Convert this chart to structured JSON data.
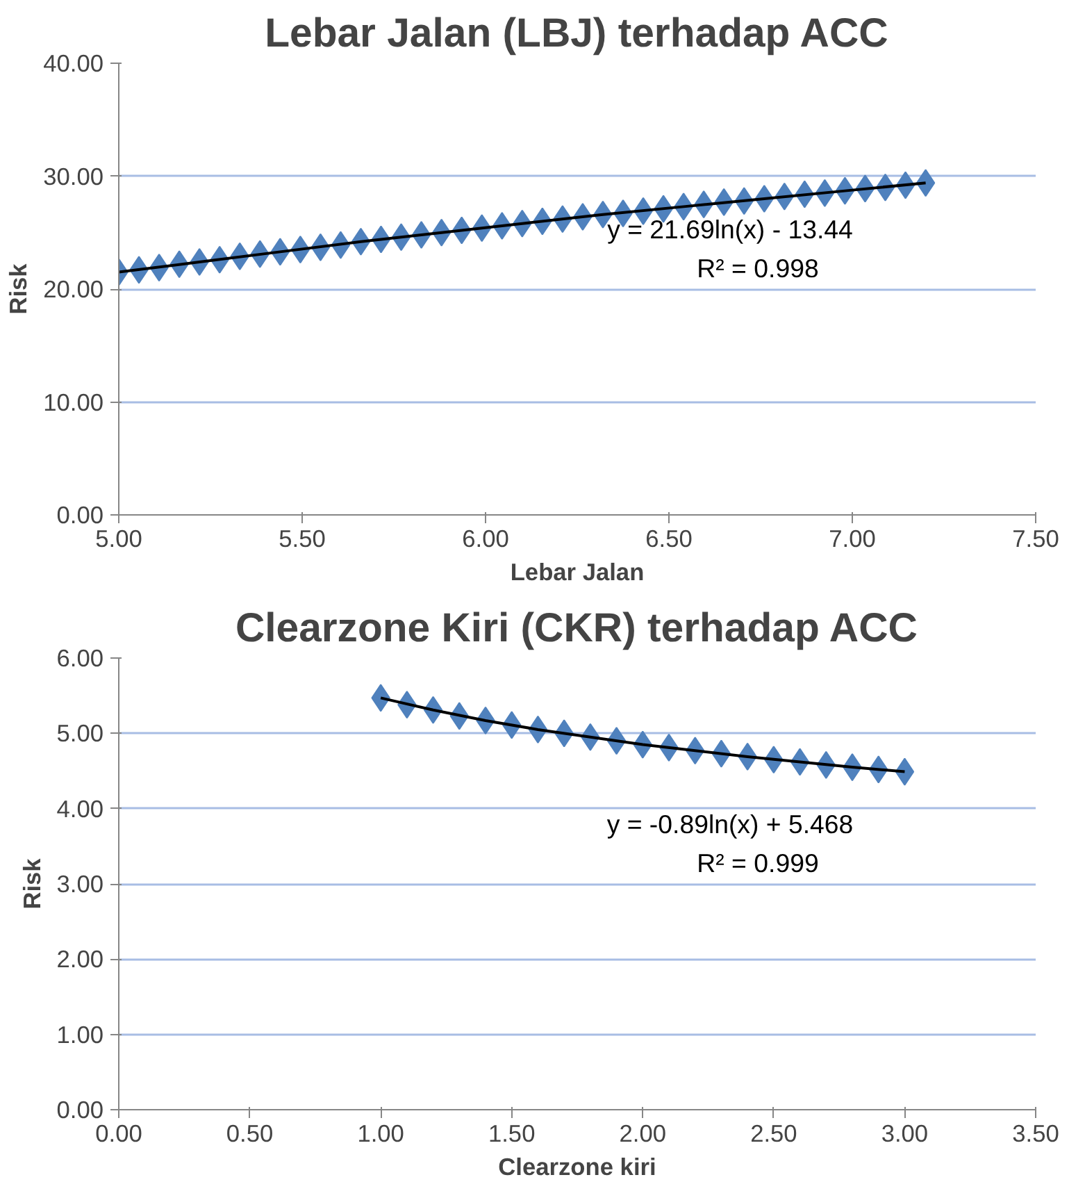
{
  "chart_data": [
    {
      "type": "scatter",
      "title": "Lebar Jalan (LBJ) terhadap ACC",
      "xlabel": "Lebar Jalan",
      "ylabel": "Risk",
      "grid": "y",
      "xlim": [
        5.0,
        7.5
      ],
      "xticks": [
        {
          "value": 5.0,
          "label": "5.00"
        },
        {
          "value": 5.5,
          "label": "5.50"
        },
        {
          "value": 6.0,
          "label": "6.00"
        },
        {
          "value": 6.5,
          "label": "6.50"
        },
        {
          "value": 7.0,
          "label": "7.00"
        },
        {
          "value": 7.5,
          "label": "7.50"
        }
      ],
      "ylim": [
        0,
        40
      ],
      "yticks": [
        {
          "value": 0,
          "label": "0.00"
        },
        {
          "value": 10,
          "label": "10.00"
        },
        {
          "value": 20,
          "label": "20.00"
        },
        {
          "value": 30,
          "label": "30.00"
        },
        {
          "value": 40,
          "label": "40.00"
        }
      ],
      "series": [
        {
          "color": "#4f81bd",
          "marker": "diamond",
          "x": [
            5.0,
            5.055,
            5.11,
            5.165,
            5.22,
            5.275,
            5.33,
            5.385,
            5.44,
            5.495,
            5.55,
            5.605,
            5.66,
            5.715,
            5.77,
            5.825,
            5.88,
            5.935,
            5.99,
            6.045,
            6.1,
            6.155,
            6.21,
            6.265,
            6.32,
            6.375,
            6.43,
            6.485,
            6.54,
            6.595,
            6.65,
            6.705,
            6.76,
            6.815,
            6.87,
            6.925,
            6.98,
            7.035,
            7.09,
            7.145,
            7.2
          ],
          "values": [
            21.5,
            21.7,
            21.9,
            22.2,
            22.4,
            22.6,
            22.9,
            23.1,
            23.3,
            23.5,
            23.7,
            23.9,
            24.2,
            24.4,
            24.6,
            24.8,
            25.0,
            25.2,
            25.4,
            25.6,
            25.8,
            26.0,
            26.2,
            26.4,
            26.6,
            26.7,
            26.9,
            27.1,
            27.3,
            27.5,
            27.7,
            27.8,
            28.0,
            28.2,
            28.4,
            28.5,
            28.7,
            28.9,
            29.0,
            29.2,
            29.4
          ]
        },
        {
          "type": "line",
          "marker": "none",
          "color": "#000000",
          "x": [
            5.0,
            5.22,
            5.44,
            5.66,
            5.88,
            6.1,
            6.32,
            6.54,
            6.76,
            6.98,
            7.2
          ],
          "values": [
            21.5,
            22.4,
            23.3,
            24.2,
            25.0,
            25.8,
            26.6,
            27.3,
            28.0,
            28.7,
            29.4
          ]
        }
      ],
      "annotations": [
        "y = 21.69ln(x) - 13.44",
        "R² = 0.998"
      ]
    },
    {
      "type": "scatter",
      "title": "Clearzone Kiri (CKR) terhadap ACC",
      "xlabel": "Clearzone kiri",
      "ylabel": "Risk",
      "grid": "y",
      "xlim": [
        0.0,
        3.5
      ],
      "xticks": [
        {
          "value": 0.0,
          "label": "0.00"
        },
        {
          "value": 0.5,
          "label": "0.50"
        },
        {
          "value": 1.0,
          "label": "1.00"
        },
        {
          "value": 1.5,
          "label": "1.50"
        },
        {
          "value": 2.0,
          "label": "2.00"
        },
        {
          "value": 2.5,
          "label": "2.50"
        },
        {
          "value": 3.0,
          "label": "3.00"
        },
        {
          "value": 3.5,
          "label": "3.50"
        }
      ],
      "ylim": [
        0,
        6
      ],
      "yticks": [
        {
          "value": 0,
          "label": "0.00"
        },
        {
          "value": 1,
          "label": "1.00"
        },
        {
          "value": 2,
          "label": "2.00"
        },
        {
          "value": 3,
          "label": "3.00"
        },
        {
          "value": 4,
          "label": "4.00"
        },
        {
          "value": 5,
          "label": "5.00"
        },
        {
          "value": 6,
          "label": "6.00"
        }
      ],
      "series": [
        {
          "color": "#4f81bd",
          "marker": "diamond",
          "x": [
            1.0,
            1.1,
            1.2,
            1.3,
            1.4,
            1.5,
            1.6,
            1.7,
            1.8,
            1.9,
            2.0,
            2.1,
            2.2,
            2.3,
            2.4,
            2.5,
            2.6,
            2.7,
            2.8,
            2.9,
            3.0
          ],
          "values": [
            5.47,
            5.38,
            5.31,
            5.23,
            5.17,
            5.11,
            5.05,
            5.0,
            4.95,
            4.9,
            4.85,
            4.81,
            4.77,
            4.73,
            4.69,
            4.65,
            4.62,
            4.58,
            4.55,
            4.52,
            4.49
          ]
        },
        {
          "type": "line",
          "marker": "none",
          "color": "#000000",
          "x": [
            1.0,
            1.2,
            1.4,
            1.6,
            1.8,
            2.0,
            2.2,
            2.4,
            2.6,
            2.8,
            3.0
          ],
          "values": [
            5.47,
            5.31,
            5.17,
            5.05,
            4.95,
            4.85,
            4.77,
            4.69,
            4.62,
            4.55,
            4.49
          ]
        }
      ],
      "annotations": [
        "y = -0.89ln(x) + 5.468",
        "R² = 0.999"
      ]
    }
  ]
}
